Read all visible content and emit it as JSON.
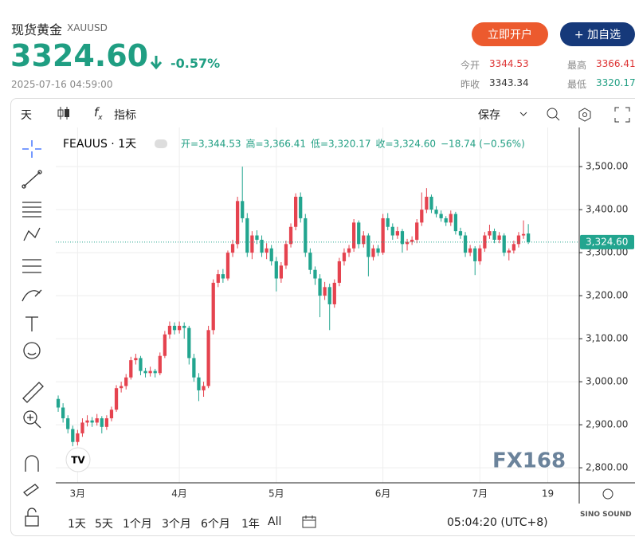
{
  "header": {
    "title": "现货黄金",
    "symbol": "XAUUSD",
    "price": "3324.60",
    "change": "-0.57%",
    "time": "2025-07-16 04:59:00",
    "buttons": [
      "立即开户",
      "+ 加自选"
    ],
    "stats": [
      {
        "label": "今开",
        "value": "3344.53"
      },
      {
        "label": "最高",
        "value": "3366.41"
      },
      {
        "label": "昨收",
        "value": "3343.34"
      },
      {
        "label": "最低",
        "value": "3320.17"
      }
    ]
  },
  "toolbar": {
    "interval": "天",
    "indicators": "指标",
    "save": "保存"
  },
  "chart_data": {
    "type": "candlestick",
    "title": "FEAUUS · 1天",
    "ohlc_legend": [
      "开=3,344.53",
      "高=3,366.41",
      "低=3,320.17",
      "收=3,324.60",
      "−18.74 (−0.56%)"
    ],
    "up_color": "#e5434f",
    "down_color": "#22a58f",
    "candles": [
      [
        2960,
        2968,
        2930,
        2940
      ],
      [
        2940,
        2950,
        2905,
        2915
      ],
      [
        2915,
        2922,
        2880,
        2890
      ],
      [
        2890,
        2898,
        2850,
        2860
      ],
      [
        2860,
        2888,
        2852,
        2880
      ],
      [
        2880,
        2915,
        2872,
        2905
      ],
      [
        2905,
        2922,
        2896,
        2910
      ],
      [
        2910,
        2918,
        2895,
        2905
      ],
      [
        2905,
        2925,
        2898,
        2915
      ],
      [
        2915,
        2920,
        2880,
        2895
      ],
      [
        2895,
        2922,
        2888,
        2915
      ],
      [
        2915,
        2942,
        2908,
        2935
      ],
      [
        2935,
        2992,
        2930,
        2985
      ],
      [
        2985,
        3000,
        2975,
        2990
      ],
      [
        2990,
        3018,
        2982,
        3010
      ],
      [
        3010,
        3058,
        3005,
        3050
      ],
      [
        3050,
        3065,
        3040,
        3055
      ],
      [
        3055,
        3060,
        3015,
        3025
      ],
      [
        3025,
        3032,
        3010,
        3020
      ],
      [
        3020,
        3035,
        3012,
        3025
      ],
      [
        3025,
        3030,
        3010,
        3020
      ],
      [
        3020,
        3068,
        3015,
        3060
      ],
      [
        3060,
        3118,
        3055,
        3110
      ],
      [
        3110,
        3140,
        3100,
        3130
      ],
      [
        3130,
        3138,
        3110,
        3120
      ],
      [
        3120,
        3140,
        3112,
        3130
      ],
      [
        3130,
        3138,
        3100,
        3125
      ],
      [
        3125,
        3130,
        3040,
        3055
      ],
      [
        3055,
        3065,
        3000,
        3010
      ],
      [
        3010,
        3020,
        2955,
        2980
      ],
      [
        2980,
        3000,
        2965,
        2990
      ],
      [
        2990,
        3130,
        2985,
        3120
      ],
      [
        3120,
        3238,
        3110,
        3230
      ],
      [
        3230,
        3260,
        3220,
        3250
      ],
      [
        3250,
        3262,
        3230,
        3240
      ],
      [
        3240,
        3305,
        3235,
        3300
      ],
      [
        3300,
        3330,
        3290,
        3320
      ],
      [
        3320,
        3430,
        3310,
        3420
      ],
      [
        3420,
        3500,
        3370,
        3380
      ],
      [
        3380,
        3392,
        3290,
        3300
      ],
      [
        3300,
        3350,
        3285,
        3340
      ],
      [
        3340,
        3352,
        3320,
        3330
      ],
      [
        3330,
        3340,
        3290,
        3300
      ],
      [
        3300,
        3322,
        3285,
        3310
      ],
      [
        3310,
        3318,
        3270,
        3280
      ],
      [
        3280,
        3290,
        3210,
        3240
      ],
      [
        3240,
        3278,
        3230,
        3270
      ],
      [
        3270,
        3328,
        3262,
        3320
      ],
      [
        3320,
        3368,
        3312,
        3360
      ],
      [
        3360,
        3438,
        3352,
        3430
      ],
      [
        3430,
        3440,
        3370,
        3380
      ],
      [
        3380,
        3390,
        3290,
        3300
      ],
      [
        3300,
        3310,
        3250,
        3260
      ],
      [
        3260,
        3268,
        3225,
        3240
      ],
      [
        3240,
        3250,
        3150,
        3200
      ],
      [
        3200,
        3232,
        3190,
        3220
      ],
      [
        3220,
        3228,
        3120,
        3180
      ],
      [
        3180,
        3238,
        3172,
        3230
      ],
      [
        3230,
        3288,
        3222,
        3280
      ],
      [
        3280,
        3310,
        3270,
        3300
      ],
      [
        3300,
        3318,
        3290,
        3310
      ],
      [
        3310,
        3378,
        3302,
        3370
      ],
      [
        3370,
        3375,
        3310,
        3320
      ],
      [
        3320,
        3350,
        3312,
        3340
      ],
      [
        3340,
        3345,
        3245,
        3290
      ],
      [
        3290,
        3318,
        3282,
        3310
      ],
      [
        3310,
        3318,
        3292,
        3300
      ],
      [
        3300,
        3390,
        3295,
        3380
      ],
      [
        3380,
        3392,
        3352,
        3360
      ],
      [
        3360,
        3368,
        3330,
        3340
      ],
      [
        3340,
        3360,
        3332,
        3350
      ],
      [
        3350,
        3355,
        3300,
        3320
      ],
      [
        3320,
        3332,
        3305,
        3325
      ],
      [
        3325,
        3338,
        3318,
        3330
      ],
      [
        3330,
        3378,
        3322,
        3370
      ],
      [
        3370,
        3440,
        3362,
        3400
      ],
      [
        3400,
        3450,
        3392,
        3430
      ],
      [
        3430,
        3435,
        3392,
        3400
      ],
      [
        3400,
        3408,
        3382,
        3390
      ],
      [
        3390,
        3398,
        3372,
        3380
      ],
      [
        3380,
        3385,
        3362,
        3370
      ],
      [
        3370,
        3398,
        3362,
        3390
      ],
      [
        3390,
        3395,
        3342,
        3350
      ],
      [
        3350,
        3358,
        3332,
        3340
      ],
      [
        3340,
        3348,
        3290,
        3300
      ],
      [
        3300,
        3318,
        3292,
        3310
      ],
      [
        3310,
        3315,
        3248,
        3280
      ],
      [
        3280,
        3318,
        3272,
        3310
      ],
      [
        3310,
        3348,
        3302,
        3340
      ],
      [
        3340,
        3365,
        3332,
        3350
      ],
      [
        3350,
        3356,
        3322,
        3330
      ],
      [
        3330,
        3348,
        3322,
        3340
      ],
      [
        3340,
        3345,
        3292,
        3300
      ],
      [
        3300,
        3310,
        3282,
        3305
      ],
      [
        3305,
        3328,
        3298,
        3320
      ],
      [
        3320,
        3348,
        3312,
        3340
      ],
      [
        3340,
        3375,
        3332,
        3343.34
      ],
      [
        3344.53,
        3366.41,
        3320.17,
        3324.6
      ]
    ],
    "xlim": [
      -0.5,
      107.5
    ],
    "xticks": [
      {
        "value": 4,
        "label": "3月"
      },
      {
        "value": 25,
        "label": "4月"
      },
      {
        "value": 45,
        "label": "5月"
      },
      {
        "value": 67,
        "label": "6月"
      },
      {
        "value": 87,
        "label": "7月"
      },
      {
        "value": 101,
        "label": "19"
      }
    ],
    "ylim": [
      2765,
      3591
    ],
    "yticks": [
      {
        "value": 2800,
        "label": "2,800.00"
      },
      {
        "value": 2900,
        "label": "2,900.00"
      },
      {
        "value": 3000,
        "label": "3,000.00"
      },
      {
        "value": 3100,
        "label": "3,100.00"
      },
      {
        "value": 3200,
        "label": "3,200.00"
      },
      {
        "value": 3300,
        "label": "3,300.00"
      },
      {
        "value": 3400,
        "label": "3,400.00"
      },
      {
        "value": 3500,
        "label": "3,500.00"
      }
    ],
    "grid": true,
    "price_line": {
      "value": 3324.6,
      "label": "3,324.60"
    },
    "watermark": "FX168"
  },
  "footer": {
    "ranges": [
      "1天",
      "5天",
      "1个月",
      "3个月",
      "6个月",
      "1年",
      "All"
    ],
    "clock": "05:04:20 (UTC+8)",
    "brand": "SINO SOUND"
  }
}
